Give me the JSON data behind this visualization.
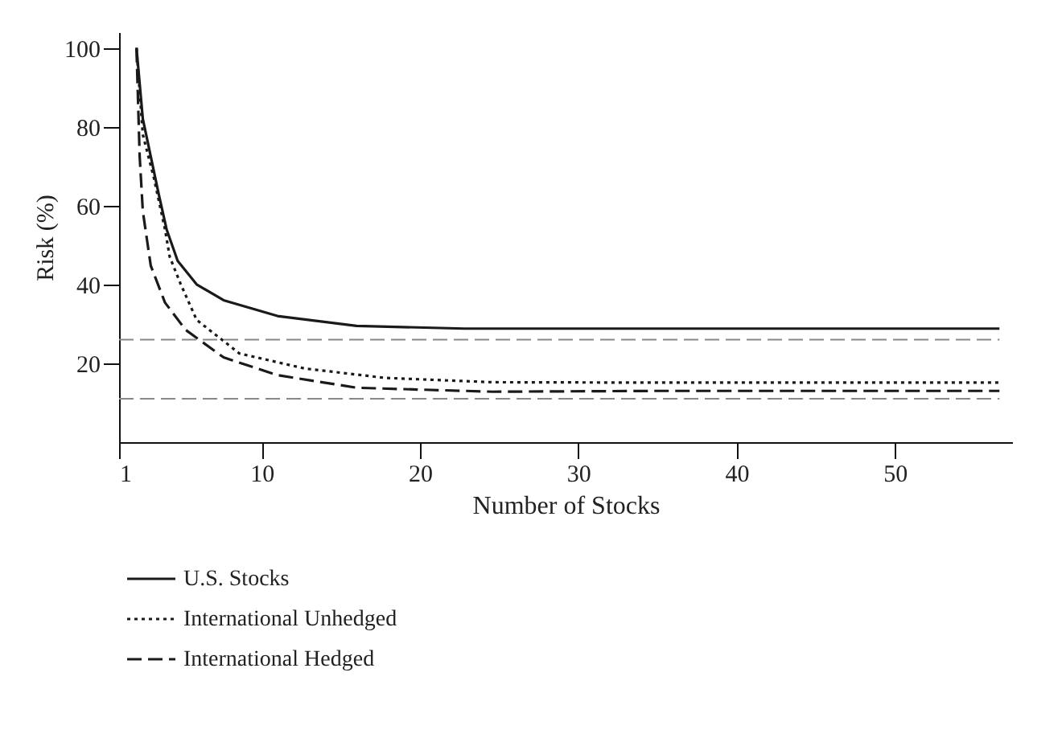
{
  "chart_data": {
    "type": "line",
    "xlabel": "Number of Stocks",
    "ylabel": "Risk (%)",
    "xlim": [
      1,
      57.4
    ],
    "xticks": [
      1,
      10,
      20,
      30,
      40,
      50
    ],
    "ylim": [
      0,
      104
    ],
    "yticks": [
      20,
      40,
      60,
      80,
      100
    ],
    "grid": false,
    "legend": "bottom",
    "marker": "none",
    "series": [
      {
        "name": "U.S. Stocks",
        "color": "#1a1a1a",
        "line_style": "solid",
        "x": [
          2.1,
          2.5,
          3.5,
          4.0,
          4.7,
          5.9,
          7.6,
          11,
          16,
          22.8,
          30,
          40,
          56.6
        ],
        "values": [
          100,
          82,
          63,
          54,
          46,
          40,
          36,
          32,
          29.5,
          28.8,
          28.8,
          28.8,
          28.8
        ]
      },
      {
        "name": "International Unhedged",
        "color": "#1a1a1a",
        "line_style": "dotted",
        "x": [
          2.1,
          2.5,
          3.2,
          3.9,
          4.2,
          4.9,
          5.9,
          8.6,
          12.7,
          17.8,
          24.6,
          35,
          56.6
        ],
        "values": [
          100,
          78,
          67,
          54,
          47,
          40,
          31,
          22.5,
          18.7,
          16.3,
          15.2,
          15.1,
          15.1
        ]
      },
      {
        "name": "International Hedged",
        "color": "#1a1a1a",
        "line_style": "dashed",
        "x": [
          2.1,
          2.3,
          2.5,
          3.0,
          3.9,
          5.2,
          7.6,
          11,
          16,
          24.6,
          35,
          56.6
        ],
        "values": [
          100,
          72.6,
          58.6,
          44.8,
          35.4,
          28.5,
          21.5,
          17,
          13.8,
          12.8,
          13.0,
          13.0
        ]
      }
    ],
    "ref_lines": [
      {
        "axis": "y",
        "value": 26,
        "color": "#888888",
        "line_style": "dashed"
      },
      {
        "axis": "y",
        "value": 11,
        "color": "#888888",
        "line_style": "dashed"
      }
    ]
  }
}
